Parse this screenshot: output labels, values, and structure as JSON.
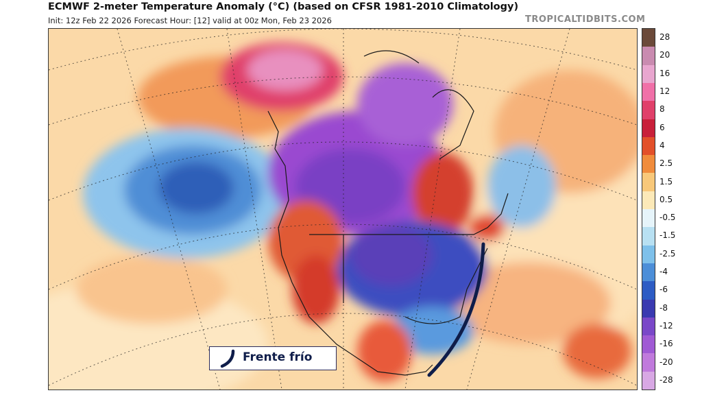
{
  "header": {
    "title": "ECMWF 2-meter Temperature Anomaly (°C) (based on CFSR 1981-2010 Climatology)",
    "subtitle": "Init: 12z Feb 22 2026   Forecast Hour: [12]   valid at 00z Mon, Feb 23 2026",
    "brand": "TROPICALTIDBITS.COM"
  },
  "legend": {
    "labels": [
      "28",
      "20",
      "16",
      "12",
      "8",
      "6",
      "4",
      "2.5",
      "1.5",
      "0.5",
      "-0.5",
      "-1.5",
      "-2.5",
      "-4",
      "-6",
      "-8",
      "-12",
      "-16",
      "-20",
      "-28"
    ],
    "colors": [
      "#6b4a3a",
      "#c98bb0",
      "#e8a6cf",
      "#f070a8",
      "#e0406a",
      "#c8203a",
      "#e2502a",
      "#f08c3c",
      "#f8c87a",
      "#fce9b8",
      "#e6f4fa",
      "#b8e0f2",
      "#7ec0ea",
      "#4c8ed8",
      "#2d5cc4",
      "#3a3ab0",
      "#7a48c8",
      "#a05ad4",
      "#c07adc",
      "#d8a8e4"
    ]
  },
  "annotation": {
    "label": "Frente frío",
    "color": "#0f1d4a"
  },
  "map": {
    "region": "North America"
  }
}
